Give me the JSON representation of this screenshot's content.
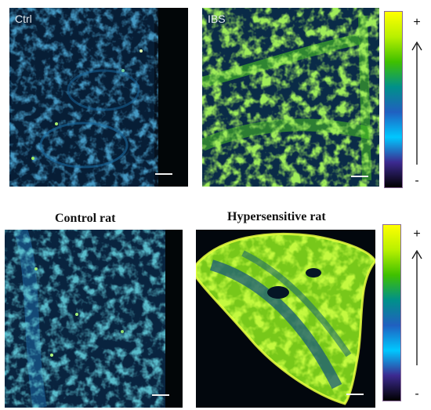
{
  "figure": {
    "top_row": {
      "left_panel": {
        "label": "Ctrl"
      },
      "right_panel": {
        "label": "IBS"
      }
    },
    "bottom_row": {
      "left_caption": "Control rat",
      "right_caption": "Hypersensitive rat"
    },
    "colorbar": {
      "max_label": "+",
      "min_label": "-",
      "gradient_colors": [
        "#ffff00",
        "#b8f000",
        "#3fc000",
        "#00908a",
        "#2060c0",
        "#00c8ff",
        "#3c2a90",
        "#000000"
      ]
    }
  }
}
